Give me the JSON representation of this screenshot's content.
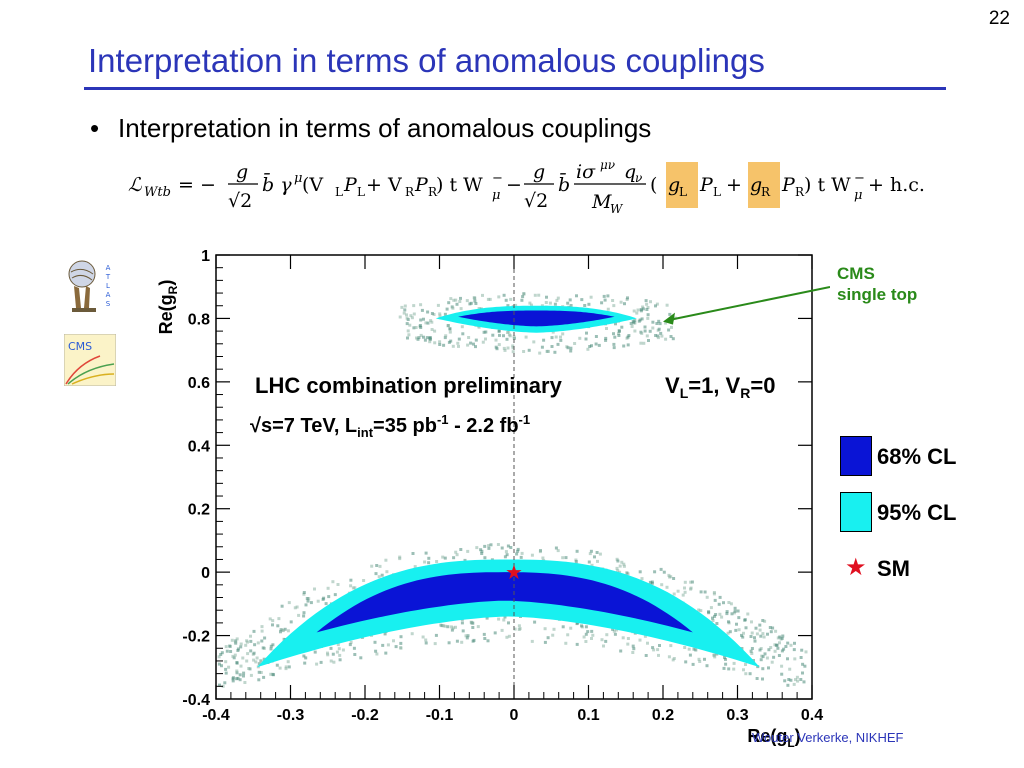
{
  "slide": {
    "number": "22",
    "title": "Interpretation in terms of anomalous couplings",
    "bullet": "Interpretation in terms of anomalous couplings",
    "footer": "Wouter Verkerke, NIKHEF"
  },
  "logos": [
    {
      "name": "ATLAS",
      "text": "ATLAS"
    },
    {
      "name": "CMS",
      "text": "CMS"
    }
  ],
  "formula": {
    "lhs": "ℒ",
    "lhs_sub": "Wtb",
    "eq": " = −",
    "frac1_num": "g",
    "frac1_den": "√2",
    "term1": "b̄ γ",
    "mu": "μ",
    "paren1": " (V",
    "L": "L",
    "P": "P",
    "plus": " + V",
    "R": "R",
    "close1": ") t W",
    "minus_sup": "−",
    "mid": " − ",
    "frac2_num": "iσ",
    "munu": "μν",
    "q": "q",
    "nu": "ν",
    "MW": "M",
    "W": "W",
    "gL": "g",
    "gR": "g",
    "hc": " + h.c."
  },
  "chart_data": {
    "type": "contour",
    "title": "LHC combination preliminary",
    "subtitle": "√s=7 TeV,  L",
    "subtitle_int": "int",
    "subtitle_rest": "=35 pb",
    "subtitle_exp1": "-1",
    "subtitle_rest2": " - 2.2 fb",
    "subtitle_exp2": "-1",
    "condition": "V",
    "condition_L": "L",
    "condition_mid": "=1, V",
    "condition_R": "R",
    "condition_end": "=0",
    "xlabel": "Re(g",
    "xlabel_sub": "L",
    "ylabel": "Re(g",
    "ylabel_sub": "R",
    "xlim": [
      -0.4,
      0.4
    ],
    "ylim": [
      -0.4,
      1.0
    ],
    "xticks": [
      "-0.4",
      "-0.3",
      "-0.2",
      "-0.1",
      "0",
      "0.1",
      "0.2",
      "0.3",
      "0.4"
    ],
    "yticks": [
      "-0.4",
      "-0.2",
      "0",
      "0.2",
      "0.4",
      "0.6",
      "0.8",
      "1"
    ],
    "legend": [
      {
        "label": "68% CL",
        "color": "#0a14d6"
      },
      {
        "label": "95% CL",
        "color": "#18f0f0"
      },
      {
        "label": "SM",
        "color": "#e01020"
      }
    ],
    "sm_point": {
      "x": 0.0,
      "y": 0.0
    },
    "regions": {
      "lower_95": {
        "xmin": -0.345,
        "xmax": 0.33,
        "ymax_center": 0.04,
        "ymin_center": -0.14,
        "yedge": -0.3
      },
      "lower_68": {
        "xmin": -0.265,
        "xmax": 0.24,
        "ymax_center": 0.0,
        "ymin_center": -0.09,
        "yedge": -0.19
      },
      "upper_95": {
        "xmin": -0.105,
        "xmax": 0.165,
        "ymax_center": 0.84,
        "ymin_center": 0.755,
        "yedge": 0.8
      },
      "upper_68": {
        "xmin": -0.075,
        "xmax": 0.135,
        "ymax_center": 0.825,
        "ymin_center": 0.775,
        "yedge": 0.805
      }
    },
    "colors": {
      "cl68": "#0a14d6",
      "cl95": "#18f0f0",
      "scatter": "#8cb4a4",
      "frame": "#000000"
    },
    "annotation": {
      "line1": "CMS",
      "line2": "single top",
      "color": "#2a8a1a",
      "arrow_target": {
        "x": 0.2,
        "y": 0.79
      }
    }
  }
}
